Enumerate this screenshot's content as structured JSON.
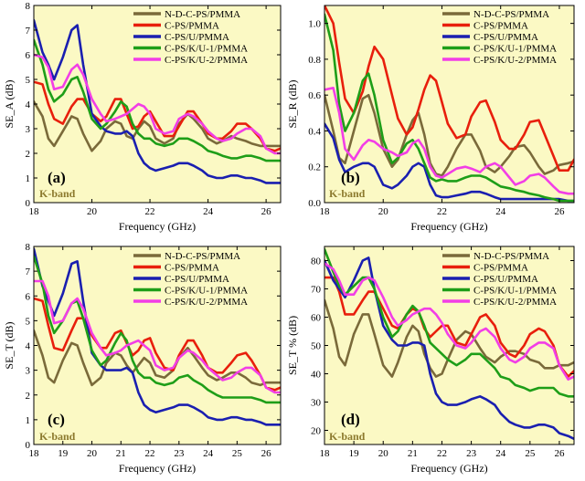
{
  "colors": {
    "background": "#fbf9c4",
    "band_label": "#8c7a2e",
    "series": [
      "#7a6a3a",
      "#e81f0c",
      "#1a1fb0",
      "#1e9e18",
      "#f23ee6"
    ]
  },
  "legend_names": [
    "N-D-C-PS/PMMA",
    "C-PS/PMMA",
    "C-PS/U/PMMA",
    "C-PS/K/U-1/PMMA",
    "C-PS/K/U-2/PMMA"
  ],
  "chart_data": [
    {
      "type": "line",
      "panel_label": "(a)",
      "band_label": "K-band",
      "xlabel": "Frequency (GHz)",
      "ylabel": "SE_A (dB)",
      "xlim": [
        18,
        26.5
      ],
      "ylim": [
        0,
        8
      ],
      "xticks": [
        "18",
        "20",
        "22",
        "24",
        "26"
      ],
      "yticks": [
        "0",
        "1",
        "2",
        "3",
        "4",
        "5",
        "6",
        "7",
        "8"
      ],
      "x": [
        18,
        18.3,
        18.5,
        18.7,
        19,
        19.3,
        19.5,
        19.7,
        20,
        20.3,
        20.5,
        20.8,
        21,
        21.2,
        21.4,
        21.6,
        21.8,
        22,
        22.2,
        22.5,
        22.8,
        23,
        23.3,
        23.5,
        23.8,
        24,
        24.3,
        24.5,
        24.8,
        25,
        25.3,
        25.5,
        25.8,
        26,
        26.3,
        26.5
      ],
      "series": [
        {
          "name": "N-D-C-PS/PMMA",
          "values": [
            4.1,
            3.5,
            2.6,
            2.3,
            2.9,
            3.5,
            3.4,
            2.8,
            2.1,
            2.5,
            3.0,
            3.3,
            3.2,
            2.7,
            2.6,
            3.0,
            3.3,
            3.1,
            2.6,
            2.4,
            2.6,
            3.2,
            3.6,
            3.4,
            3.0,
            2.6,
            2.4,
            2.5,
            2.7,
            2.6,
            2.5,
            2.4,
            2.3,
            2.3,
            2.3,
            2.3
          ]
        },
        {
          "name": "C-PS/PMMA",
          "values": [
            4.9,
            4.8,
            4.0,
            3.4,
            3.2,
            3.9,
            4.2,
            4.2,
            3.6,
            3.3,
            3.5,
            4.2,
            4.2,
            3.6,
            3.0,
            3.1,
            3.5,
            3.7,
            3.3,
            2.7,
            2.7,
            3.1,
            3.7,
            3.7,
            3.2,
            2.8,
            2.6,
            2.6,
            2.9,
            3.2,
            3.2,
            3.0,
            2.6,
            2.2,
            2.1,
            2.2
          ]
        },
        {
          "name": "C-PS/U/PMMA",
          "values": [
            7.4,
            6.1,
            5.6,
            5.0,
            5.9,
            7.0,
            7.2,
            5.6,
            3.6,
            3.1,
            2.9,
            2.8,
            2.8,
            2.9,
            2.7,
            2.0,
            1.6,
            1.4,
            1.3,
            1.4,
            1.5,
            1.6,
            1.6,
            1.5,
            1.3,
            1.1,
            1.0,
            1.0,
            1.1,
            1.1,
            1.0,
            1.0,
            0.9,
            0.8,
            0.8,
            0.8
          ]
        },
        {
          "name": "C-PS/K/U-1/PMMA",
          "values": [
            6.6,
            5.6,
            4.6,
            4.1,
            4.4,
            5.0,
            5.1,
            4.5,
            3.4,
            3.0,
            3.2,
            3.7,
            4.1,
            3.9,
            3.2,
            2.8,
            2.6,
            2.6,
            2.4,
            2.3,
            2.4,
            2.6,
            2.6,
            2.5,
            2.3,
            2.1,
            2.0,
            1.9,
            1.8,
            1.8,
            1.9,
            1.9,
            1.8,
            1.7,
            1.7,
            1.7
          ]
        },
        {
          "name": "C-PS/K/U-2/PMMA",
          "values": [
            6.0,
            5.9,
            5.5,
            4.6,
            4.7,
            5.4,
            5.6,
            5.2,
            4.2,
            3.6,
            3.3,
            3.4,
            3.5,
            3.6,
            3.8,
            4.0,
            3.9,
            3.6,
            3.0,
            2.8,
            2.9,
            3.4,
            3.6,
            3.5,
            3.2,
            2.9,
            2.6,
            2.5,
            2.6,
            2.8,
            3.0,
            3.0,
            2.7,
            2.2,
            2.0,
            2.0
          ]
        }
      ]
    },
    {
      "type": "line",
      "panel_label": "(b)",
      "band_label": "K-band",
      "xlabel": "Frequency (GHz)",
      "ylabel": "SE_R (dB)",
      "xlim": [
        18,
        26.5
      ],
      "ylim": [
        0,
        1.1
      ],
      "xticks": [
        "18",
        "20",
        "22",
        "24",
        "26"
      ],
      "yticks": [
        "0.0",
        "0.2",
        "0.4",
        "0.6",
        "0.8",
        "1.0"
      ],
      "x": [
        18,
        18.3,
        18.5,
        18.7,
        19,
        19.3,
        19.5,
        19.7,
        20,
        20.3,
        20.5,
        20.8,
        21,
        21.2,
        21.4,
        21.6,
        21.8,
        22,
        22.2,
        22.5,
        22.8,
        23,
        23.3,
        23.5,
        23.8,
        24,
        24.3,
        24.5,
        24.8,
        25,
        25.3,
        25.5,
        25.8,
        26,
        26.3,
        26.5
      ],
      "series": [
        {
          "name": "N-D-C-PS/PMMA",
          "values": [
            0.6,
            0.4,
            0.25,
            0.22,
            0.4,
            0.58,
            0.6,
            0.5,
            0.3,
            0.2,
            0.24,
            0.38,
            0.46,
            0.5,
            0.38,
            0.22,
            0.16,
            0.15,
            0.2,
            0.3,
            0.38,
            0.38,
            0.29,
            0.2,
            0.17,
            0.2,
            0.26,
            0.31,
            0.32,
            0.28,
            0.2,
            0.16,
            0.18,
            0.21,
            0.22,
            0.23
          ]
        },
        {
          "name": "C-PS/PMMA",
          "values": [
            1.1,
            1.0,
            0.78,
            0.58,
            0.5,
            0.62,
            0.76,
            0.87,
            0.8,
            0.6,
            0.47,
            0.38,
            0.42,
            0.52,
            0.63,
            0.71,
            0.68,
            0.56,
            0.44,
            0.36,
            0.38,
            0.48,
            0.56,
            0.57,
            0.45,
            0.35,
            0.3,
            0.3,
            0.38,
            0.45,
            0.46,
            0.38,
            0.26,
            0.18,
            0.18,
            0.24
          ]
        },
        {
          "name": "C-PS/U/PMMA",
          "values": [
            0.44,
            0.36,
            0.24,
            0.17,
            0.2,
            0.22,
            0.22,
            0.2,
            0.1,
            0.08,
            0.1,
            0.15,
            0.2,
            0.22,
            0.2,
            0.1,
            0.04,
            0.03,
            0.03,
            0.04,
            0.05,
            0.06,
            0.06,
            0.05,
            0.03,
            0.02,
            0.02,
            0.02,
            0.02,
            0.02,
            0.02,
            0.02,
            0.02,
            0.02,
            0.01,
            0.01
          ]
        },
        {
          "name": "C-PS/K/U-1/PMMA",
          "values": [
            1.05,
            0.85,
            0.55,
            0.4,
            0.5,
            0.68,
            0.72,
            0.6,
            0.35,
            0.22,
            0.25,
            0.33,
            0.35,
            0.3,
            0.22,
            0.14,
            0.12,
            0.13,
            0.12,
            0.12,
            0.14,
            0.15,
            0.15,
            0.14,
            0.11,
            0.09,
            0.08,
            0.07,
            0.06,
            0.05,
            0.04,
            0.03,
            0.02,
            0.01,
            0.01,
            0.01
          ]
        },
        {
          "name": "C-PS/K/U-2/PMMA",
          "values": [
            0.63,
            0.64,
            0.5,
            0.3,
            0.24,
            0.32,
            0.35,
            0.34,
            0.3,
            0.28,
            0.26,
            0.28,
            0.33,
            0.35,
            0.3,
            0.2,
            0.15,
            0.14,
            0.16,
            0.19,
            0.2,
            0.19,
            0.17,
            0.2,
            0.22,
            0.2,
            0.14,
            0.1,
            0.12,
            0.15,
            0.16,
            0.14,
            0.09,
            0.06,
            0.05,
            0.05
          ]
        }
      ]
    },
    {
      "type": "line",
      "panel_label": "(c)",
      "band_label": "K-band",
      "xlabel": "Frequency (GHz)",
      "ylabel": "SE_T (dB)",
      "xlim": [
        18,
        26.5
      ],
      "ylim": [
        0,
        8
      ],
      "xticks": [
        "18",
        "19",
        "20",
        "21",
        "22",
        "23",
        "24",
        "25",
        "26"
      ],
      "yticks": [
        "0",
        "1",
        "2",
        "3",
        "4",
        "5",
        "6",
        "7",
        "8"
      ],
      "x": [
        18,
        18.3,
        18.5,
        18.7,
        19,
        19.3,
        19.5,
        19.7,
        20,
        20.3,
        20.5,
        20.8,
        21,
        21.2,
        21.4,
        21.6,
        21.8,
        22,
        22.2,
        22.5,
        22.8,
        23,
        23.3,
        23.5,
        23.8,
        24,
        24.3,
        24.5,
        24.8,
        25,
        25.3,
        25.5,
        25.8,
        26,
        26.3,
        26.5
      ],
      "series": [
        {
          "name": "N-D-C-PS/PMMA",
          "values": [
            4.6,
            3.6,
            2.7,
            2.5,
            3.4,
            4.1,
            4.0,
            3.3,
            2.4,
            2.7,
            3.3,
            3.7,
            3.6,
            3.2,
            2.9,
            3.2,
            3.5,
            3.3,
            2.8,
            2.7,
            3.0,
            3.5,
            3.9,
            3.6,
            3.1,
            2.8,
            2.6,
            2.7,
            2.9,
            2.9,
            2.7,
            2.5,
            2.4,
            2.5,
            2.5,
            2.5
          ]
        },
        {
          "name": "C-PS/PMMA",
          "values": [
            5.9,
            5.8,
            4.8,
            3.9,
            3.8,
            4.6,
            5.1,
            5.1,
            4.4,
            3.9,
            3.9,
            4.5,
            4.6,
            4.1,
            3.6,
            3.8,
            4.2,
            4.3,
            3.7,
            3.1,
            3.0,
            3.6,
            4.2,
            4.2,
            3.6,
            3.1,
            2.9,
            2.9,
            3.3,
            3.6,
            3.7,
            3.4,
            2.8,
            2.3,
            2.2,
            2.3
          ]
        },
        {
          "name": "C-PS/U/PMMA",
          "values": [
            7.9,
            6.4,
            5.8,
            5.2,
            6.1,
            7.3,
            7.4,
            5.8,
            3.7,
            3.2,
            3.0,
            3.0,
            3.0,
            3.1,
            2.9,
            2.1,
            1.6,
            1.4,
            1.3,
            1.4,
            1.5,
            1.6,
            1.6,
            1.5,
            1.3,
            1.1,
            1.0,
            1.0,
            1.1,
            1.1,
            1.0,
            1.0,
            0.9,
            0.8,
            0.8,
            0.8
          ]
        },
        {
          "name": "C-PS/K/U-1/PMMA",
          "values": [
            7.6,
            6.5,
            5.2,
            4.5,
            5.0,
            5.7,
            5.8,
            5.1,
            3.8,
            3.2,
            3.4,
            4.1,
            4.5,
            4.2,
            3.4,
            2.9,
            2.7,
            2.7,
            2.5,
            2.4,
            2.5,
            2.7,
            2.8,
            2.6,
            2.4,
            2.2,
            2.0,
            1.9,
            1.9,
            1.9,
            1.9,
            1.9,
            1.8,
            1.7,
            1.7,
            1.7
          ]
        },
        {
          "name": "C-PS/K/U-2/PMMA",
          "values": [
            6.6,
            6.6,
            6.0,
            4.9,
            5.0,
            5.7,
            5.9,
            5.5,
            4.5,
            3.9,
            3.6,
            3.7,
            3.8,
            4.0,
            4.1,
            4.2,
            4.0,
            3.8,
            3.2,
            3.0,
            3.1,
            3.5,
            3.8,
            3.7,
            3.4,
            3.1,
            2.8,
            2.6,
            2.7,
            2.9,
            3.1,
            3.1,
            2.8,
            2.3,
            2.1,
            2.1
          ]
        }
      ]
    },
    {
      "type": "line",
      "panel_label": "(d)",
      "band_label": "K-band",
      "xlabel": "Frequency (GHz)",
      "ylabel": "SE_T % (dB)",
      "xlim": [
        18,
        26.5
      ],
      "ylim": [
        15,
        85
      ],
      "xticks": [
        "18",
        "19",
        "20",
        "21",
        "22",
        "23",
        "24",
        "25",
        "26"
      ],
      "yticks": [
        "20",
        "30",
        "40",
        "50",
        "60",
        "70",
        "80"
      ],
      "x": [
        18,
        18.3,
        18.5,
        18.7,
        19,
        19.3,
        19.5,
        19.7,
        20,
        20.3,
        20.5,
        20.8,
        21,
        21.2,
        21.4,
        21.6,
        21.8,
        22,
        22.2,
        22.5,
        22.8,
        23,
        23.3,
        23.5,
        23.8,
        24,
        24.3,
        24.5,
        24.8,
        25,
        25.3,
        25.5,
        25.8,
        26,
        26.3,
        26.5
      ],
      "series": [
        {
          "name": "N-D-C-PS/PMMA",
          "values": [
            66,
            56,
            46,
            43,
            54,
            61,
            61,
            54,
            43,
            39,
            44,
            53,
            57,
            55,
            47,
            42,
            39,
            40,
            45,
            52,
            55,
            54,
            49,
            46,
            44,
            46,
            48,
            48,
            47,
            45,
            44,
            42,
            42,
            43,
            43,
            44
          ]
        },
        {
          "name": "C-PS/PMMA",
          "values": [
            74,
            74,
            69,
            61,
            61,
            66,
            69,
            69,
            63,
            57,
            56,
            61,
            63,
            62,
            56,
            53,
            55,
            57,
            57,
            51,
            50,
            54,
            60,
            61,
            57,
            51,
            47,
            46,
            50,
            54,
            56,
            55,
            50,
            43,
            39,
            41
          ]
        },
        {
          "name": "C-PS/U/PMMA",
          "values": [
            80,
            73,
            70,
            67,
            73,
            80,
            81,
            70,
            57,
            52,
            50,
            50,
            51,
            51,
            50,
            40,
            33,
            30,
            29,
            29,
            30,
            31,
            32,
            31,
            29,
            26,
            23,
            22,
            21,
            21,
            22,
            22,
            21,
            19,
            18,
            17
          ]
        },
        {
          "name": "C-PS/K/U-1/PMMA",
          "values": [
            84,
            76,
            71,
            68,
            71,
            74,
            74,
            70,
            60,
            53,
            55,
            61,
            64,
            62,
            57,
            51,
            49,
            47,
            45,
            43,
            45,
            47,
            47,
            45,
            42,
            39,
            38,
            36,
            35,
            34,
            35,
            35,
            35,
            33,
            32,
            32
          ]
        },
        {
          "name": "C-PS/K/U-2/PMMA",
          "values": [
            79,
            77,
            73,
            68,
            68,
            73,
            74,
            73,
            67,
            60,
            57,
            59,
            61,
            62,
            63,
            63,
            61,
            58,
            54,
            50,
            49,
            51,
            55,
            56,
            53,
            49,
            45,
            44,
            46,
            49,
            51,
            51,
            49,
            43,
            38,
            39
          ]
        }
      ]
    }
  ]
}
